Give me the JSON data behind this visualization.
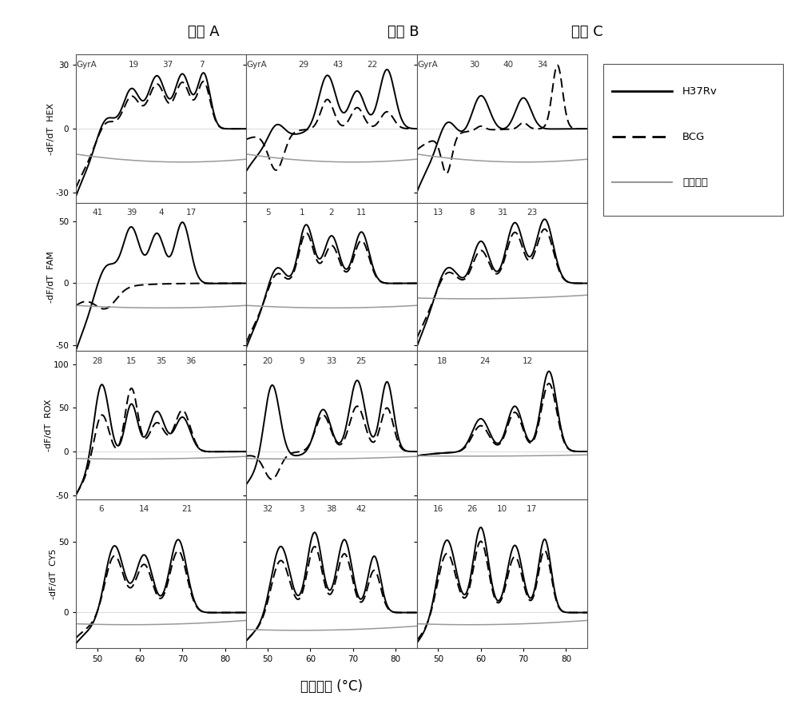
{
  "col_titles": [
    "反应 A",
    "反应 B",
    "反应 C"
  ],
  "row_labels": [
    "HEX",
    "FAM",
    "ROX",
    "CY5"
  ],
  "ylabel": "-dF/dT",
  "xlabel": "燔点温度 (°C)",
  "legend_labels": [
    "H37Rv",
    "BCG",
    "阴性对照"
  ],
  "spacer_labels": {
    "r0c0": [
      "GyrA",
      "19",
      "37",
      "7"
    ],
    "r0c1": [
      "GyrA",
      "29",
      "43",
      "22"
    ],
    "r0c2": [
      "GyrA",
      "30",
      "40",
      "34"
    ],
    "r1c0": [
      "41",
      "39",
      "4",
      "17"
    ],
    "r1c1": [
      "5",
      "1",
      "2",
      "11"
    ],
    "r1c2": [
      "13",
      "8",
      "31",
      "23"
    ],
    "r2c0": [
      "28",
      "15",
      "35",
      "36"
    ],
    "r2c1": [
      "20",
      "9",
      "33",
      "25"
    ],
    "r2c2": [
      "18",
      "24",
      "12"
    ],
    "r3c0": [
      "6",
      "14",
      "21"
    ],
    "r3c1": [
      "32",
      "3",
      "38",
      "42"
    ],
    "r3c2": [
      "16",
      "26",
      "10",
      "17"
    ]
  },
  "background_color": "#ffffff",
  "solid_color": "#000000",
  "dashed_color": "#000000",
  "neg_color": "#999999",
  "x_range": [
    45,
    85
  ]
}
